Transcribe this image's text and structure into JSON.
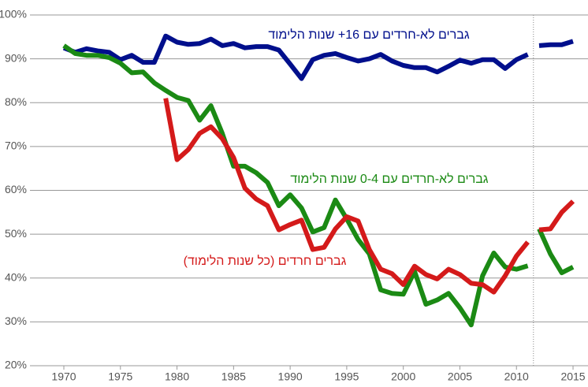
{
  "chart_data": {
    "type": "line",
    "x": [
      1970,
      1971,
      1972,
      1973,
      1974,
      1975,
      1976,
      1977,
      1978,
      1979,
      1980,
      1981,
      1982,
      1983,
      1984,
      1985,
      1986,
      1987,
      1988,
      1989,
      1990,
      1991,
      1992,
      1993,
      1994,
      1995,
      1996,
      1997,
      1998,
      1999,
      2000,
      2001,
      2002,
      2003,
      2004,
      2005,
      2006,
      2007,
      2008,
      2009,
      2010,
      2011,
      2011.5,
      2012,
      2013,
      2014,
      2015
    ],
    "series": [
      {
        "name": "גברים לא-חרדים עם 16+ שנות הלימוד",
        "color": "#000f8c",
        "values": [
          92.5,
          91.5,
          92.3,
          91.8,
          91.5,
          89.8,
          90.8,
          89.2,
          89.2,
          95.2,
          93.8,
          93.3,
          93.5,
          94.5,
          93.0,
          93.5,
          92.5,
          92.8,
          92.8,
          92.0,
          88.8,
          85.5,
          89.8,
          90.8,
          91.2,
          90.3,
          89.5,
          90.0,
          91.0,
          89.5,
          88.5,
          88.0,
          88.0,
          87.0,
          88.3,
          89.7,
          89.0,
          89.8,
          89.8,
          87.8,
          89.8,
          91.0,
          null,
          93.0,
          93.2,
          93.2,
          94.0
        ]
      },
      {
        "name": "גברים לא-חרדים עם 0-4 שנות הלימוד",
        "color": "#1b8a14",
        "values": [
          93,
          91.2,
          90.8,
          90.8,
          90.3,
          89,
          86.8,
          87,
          84.5,
          82.8,
          81.2,
          80.5,
          76,
          79.3,
          73,
          65.5,
          65.5,
          64,
          61.8,
          56.5,
          59,
          56,
          50.5,
          51.5,
          57.8,
          53.5,
          48.8,
          45.5,
          37.3,
          36.5,
          36.3,
          41.5,
          34,
          35,
          36.5,
          33.2,
          29.3,
          40.5,
          45.7,
          42.5,
          42,
          42.8,
          null,
          51.2,
          45.5,
          41.2,
          42.5
        ]
      },
      {
        "name": "גברים חרדים (כל שנות הלימוד)",
        "color": "#d41a1a",
        "values": [
          null,
          null,
          null,
          null,
          null,
          null,
          null,
          null,
          null,
          81,
          67,
          69.3,
          73,
          74.5,
          71.8,
          67.5,
          60.5,
          58,
          56.5,
          51,
          52.2,
          53.2,
          46.5,
          47,
          51.2,
          54,
          53,
          46.5,
          42,
          41,
          38.5,
          42.7,
          40.8,
          39.8,
          42,
          40.8,
          38.8,
          38.5,
          36.8,
          40.5,
          45,
          48.2,
          null,
          51,
          51.2,
          55,
          57.5
        ]
      }
    ],
    "xlim": [
      1967,
      2016.5
    ],
    "xticks": [
      1970,
      1975,
      1980,
      1985,
      1990,
      1995,
      2000,
      2005,
      2010,
      2015
    ],
    "ylim": [
      20,
      100
    ],
    "yticks": [
      {
        "value": 20,
        "label": "20%"
      },
      {
        "value": 30,
        "label": "30%"
      },
      {
        "value": 40,
        "label": "40%"
      },
      {
        "value": 50,
        "label": "50%"
      },
      {
        "value": 60,
        "label": "60%"
      },
      {
        "value": 70,
        "label": "70%"
      },
      {
        "value": 80,
        "label": "80%"
      },
      {
        "value": 90,
        "label": "90%"
      },
      {
        "value": 100,
        "label": "100%"
      }
    ],
    "grid": true,
    "vline": 2011.5
  }
}
